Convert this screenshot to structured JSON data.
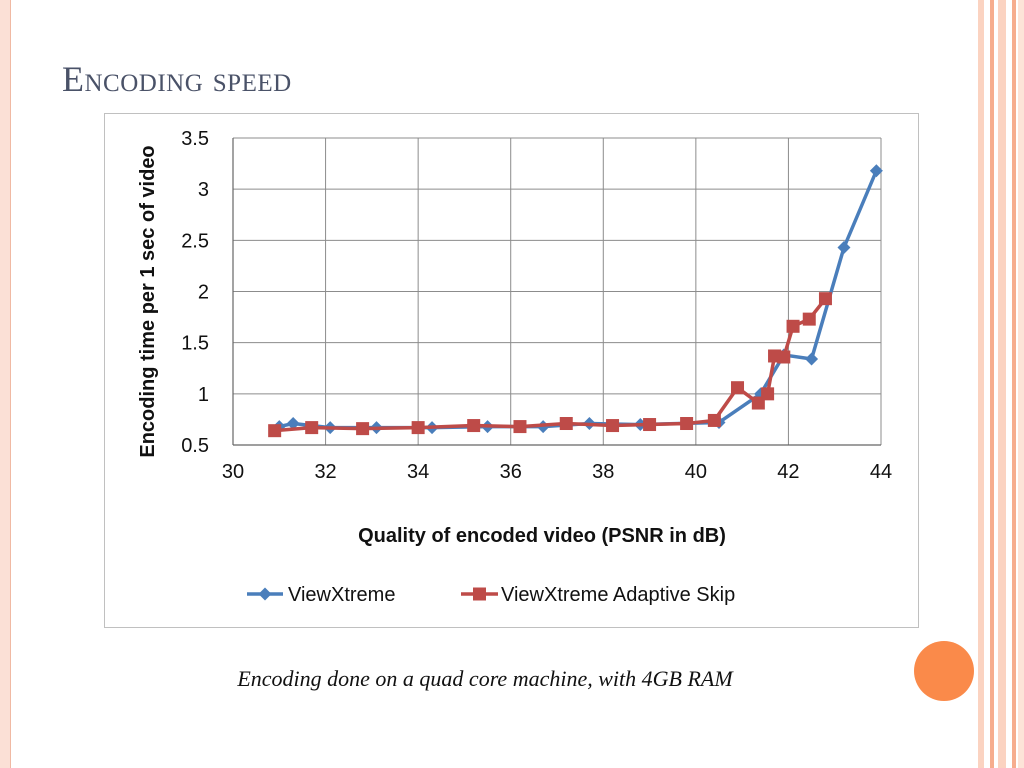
{
  "slide": {
    "title": "Encoding speed",
    "caption": "Encoding done on a quad core machine, with 4GB RAM"
  },
  "colors": {
    "accent_orange": "#fa8a4a",
    "title_color": "#4a5268",
    "series1": "#4a7ebb",
    "series2": "#be4b48"
  },
  "chart_data": {
    "type": "line",
    "xlabel": "Quality of encoded video (PSNR in dB)",
    "ylabel": "Encoding time per 1 sec of video",
    "xlim": [
      30,
      44
    ],
    "ylim": [
      0.5,
      3.5
    ],
    "xticks": [
      "30",
      "32",
      "34",
      "36",
      "38",
      "40",
      "42",
      "44"
    ],
    "yticks": [
      "0.5",
      "1",
      "1.5",
      "2",
      "2.5",
      "3",
      "3.5"
    ],
    "grid": true,
    "legend_position": "bottom",
    "series": [
      {
        "name": "ViewXtreme",
        "marker": "diamond",
        "color": "#4a7ebb",
        "x": [
          31.0,
          31.3,
          32.1,
          33.1,
          34.3,
          35.5,
          36.7,
          37.7,
          38.8,
          40.5,
          41.4,
          41.9,
          42.5,
          43.2,
          43.9
        ],
        "y": [
          0.68,
          0.71,
          0.67,
          0.67,
          0.67,
          0.68,
          0.68,
          0.71,
          0.7,
          0.72,
          1.0,
          1.38,
          1.34,
          2.43,
          3.18
        ]
      },
      {
        "name": "ViewXtreme Adaptive Skip",
        "marker": "square",
        "color": "#be4b48",
        "x": [
          30.9,
          31.7,
          32.8,
          34.0,
          35.2,
          36.2,
          37.2,
          38.2,
          39.0,
          39.8,
          40.4,
          40.9,
          41.35,
          41.55,
          41.7,
          41.9,
          42.1,
          42.45,
          42.8
        ],
        "y": [
          0.64,
          0.67,
          0.66,
          0.67,
          0.69,
          0.68,
          0.71,
          0.69,
          0.7,
          0.71,
          0.74,
          1.06,
          0.91,
          1.0,
          1.37,
          1.36,
          1.66,
          1.73,
          1.93
        ]
      }
    ]
  }
}
